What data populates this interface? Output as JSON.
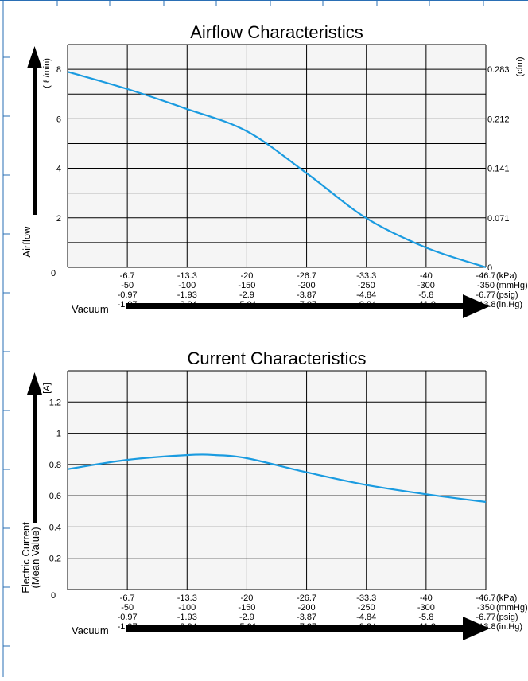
{
  "colors": {
    "curve": "#1a9be0",
    "grid": "#000000",
    "plot_bg": "#f5f5f5",
    "frame_ticks": "#2a6fb5"
  },
  "charts": [
    {
      "title": "Airflow Characteristics",
      "y_axis_name": "Airflow",
      "y_unit_left": "( ℓ /min)",
      "y_unit_right": "(cfm)",
      "x_axis_name": "Vacuum",
      "origin_label": "0"
    },
    {
      "title": "Current Characteristics",
      "y_axis_name_line1": "Electric Current",
      "y_axis_name_line2": "(Mean Value)",
      "y_unit_left": "[A]",
      "x_axis_name": "Vacuum",
      "origin_label": "0"
    }
  ],
  "x_scale_rows": {
    "kPa": {
      "unit": "(kPa)",
      "labels": [
        "-6.7",
        "-13.3",
        "-20",
        "-26.7",
        "-33.3",
        "-40",
        "-46.7"
      ]
    },
    "mmHg": {
      "unit": "(mmHg)",
      "labels": [
        "-50",
        "-100",
        "-150",
        "-200",
        "-250",
        "-300",
        "-350"
      ]
    },
    "psig": {
      "unit": "(psig)",
      "labels": [
        "-0.97",
        "-1.93",
        "-2.9",
        "-3.87",
        "-4.84",
        "-5.8",
        "-6.77"
      ]
    },
    "inHg": {
      "unit": "(in.Hg)",
      "labels": [
        "-1.97",
        "-3.94",
        "-5.91",
        "-7.87",
        "-9.84",
        "-11.8",
        "-13.8"
      ]
    }
  },
  "chart_data": [
    {
      "type": "line",
      "title": "Airflow Characteristics",
      "xlabel": "Vacuum",
      "ylabel": "Airflow",
      "x_unit": "kPa",
      "xlim": [
        0,
        -46.7
      ],
      "ylim": [
        0,
        9
      ],
      "y_ticks": [
        2,
        4,
        6,
        8
      ],
      "y_right_ticks": [
        "0",
        "0.071",
        "0.141",
        "0.212",
        "0.283"
      ],
      "y_right_unit": "cfm",
      "grid": true,
      "series": [
        {
          "x": [
            0,
            -6.7,
            -13.3,
            -20,
            -26.7,
            -33.3,
            -40,
            -46.7
          ],
          "y": [
            7.9,
            7.2,
            6.4,
            5.5,
            3.8,
            2.0,
            0.8,
            0.0
          ]
        }
      ]
    },
    {
      "type": "line",
      "title": "Current Characteristics",
      "xlabel": "Vacuum",
      "ylabel": "Electric Current (Mean Value)",
      "x_unit": "kPa",
      "xlim": [
        0,
        -46.7
      ],
      "ylim": [
        0,
        1.4
      ],
      "y_ticks": [
        0.2,
        0.4,
        0.6,
        0.8,
        1.0,
        1.2
      ],
      "grid": true,
      "series": [
        {
          "x": [
            0,
            -6.7,
            -13.3,
            -16.5,
            -20,
            -26.7,
            -33.3,
            -40,
            -46.7
          ],
          "y": [
            0.77,
            0.83,
            0.86,
            0.86,
            0.84,
            0.75,
            0.67,
            0.61,
            0.56
          ]
        }
      ]
    }
  ]
}
